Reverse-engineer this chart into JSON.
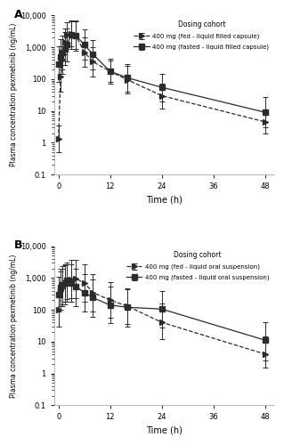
{
  "panel_A": {
    "title": "A",
    "legend_title": "Dosing cohort",
    "fed_label": "400 mg (fed - liquid filled capsule)",
    "fasted_label": "400 mg (fasted - liquid filled capsule)",
    "fed_time": [
      0,
      0.5,
      1,
      1.5,
      2,
      3,
      4,
      6,
      8,
      12,
      16,
      24,
      48
    ],
    "fed_mean": [
      1.3,
      120,
      400,
      1500,
      2500,
      2700,
      2400,
      700,
      350,
      175,
      95,
      30,
      4.5
    ],
    "fed_sd_lo": [
      0.5,
      40,
      150,
      600,
      1000,
      1100,
      900,
      250,
      120,
      80,
      35,
      12,
      2.0
    ],
    "fed_sd_hi": [
      3.5,
      350,
      1100,
      3800,
      6000,
      6500,
      6500,
      2000,
      1000,
      390,
      260,
      70,
      10
    ],
    "fasted_time": [
      0,
      0.5,
      1,
      1.5,
      2,
      3,
      4,
      6,
      8,
      12,
      16,
      24,
      48
    ],
    "fasted_mean": [
      300,
      500,
      700,
      900,
      1200,
      2500,
      2400,
      1200,
      600,
      175,
      110,
      55,
      9
    ],
    "fasted_sd_lo": [
      80,
      150,
      200,
      270,
      350,
      900,
      800,
      400,
      200,
      70,
      40,
      20,
      3
    ],
    "fasted_sd_hi": [
      1100,
      1800,
      2400,
      3000,
      4000,
      7000,
      7000,
      3600,
      1700,
      430,
      300,
      150,
      27
    ]
  },
  "panel_B": {
    "title": "B",
    "legend_title": "Dosing cohort",
    "fed_label": "400 mg (fed - liquid oral suspension)",
    "fasted_label": "400 mg (fasted - liquid oral suspension)",
    "fed_time": [
      0,
      0.5,
      1,
      1.5,
      2,
      3,
      4,
      6,
      8,
      12,
      16,
      24,
      48
    ],
    "fed_mean": [
      100,
      400,
      500,
      600,
      700,
      900,
      950,
      700,
      350,
      200,
      130,
      40,
      4
    ],
    "fed_sd_lo": [
      30,
      100,
      130,
      150,
      180,
      230,
      230,
      180,
      90,
      55,
      35,
      12,
      1.5
    ],
    "fed_sd_hi": [
      350,
      1600,
      2000,
      2500,
      2700,
      3600,
      3700,
      2700,
      1300,
      750,
      480,
      155,
      15
    ],
    "fasted_time": [
      0,
      0.5,
      1,
      1.5,
      2,
      3,
      4,
      6,
      8,
      12,
      16,
      24,
      48
    ],
    "fasted_mean": [
      300,
      500,
      600,
      700,
      850,
      700,
      550,
      350,
      240,
      140,
      120,
      105,
      11
    ],
    "fasted_sd_lo": [
      90,
      130,
      150,
      180,
      220,
      175,
      130,
      90,
      60,
      38,
      30,
      28,
      2.5
    ],
    "fasted_sd_hi": [
      1100,
      1900,
      2300,
      2600,
      3100,
      2600,
      2000,
      1300,
      900,
      520,
      450,
      390,
      40
    ]
  },
  "ylim": [
    0.1,
    10000
  ],
  "xlim": [
    -1,
    50
  ],
  "xticks": [
    0,
    12,
    24,
    36,
    48
  ],
  "xlabel": "Time (h)",
  "ylabel": "Plasma concentration pexmetinib (ng/mL)",
  "line_color": "#2b2b2b",
  "bg_color": "#ffffff"
}
